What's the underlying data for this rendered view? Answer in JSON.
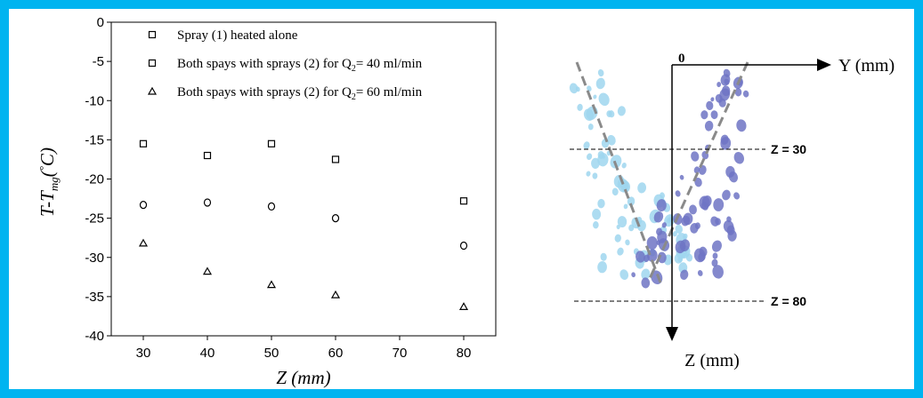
{
  "colors": {
    "frame": "#00b4f0",
    "spray_light": "#9fd6ee",
    "spray_dark": "#6f74c4",
    "spray_axis": "#8a8a8a"
  },
  "chart_data": {
    "type": "scatter",
    "title": "",
    "xlabel": "Z (mm)",
    "ylabel": "T-T_mg(°C)",
    "ylabel_parts": [
      "T-T",
      "mg",
      "(",
      "°",
      "C)"
    ],
    "x_ticks": [
      30,
      40,
      50,
      60,
      70,
      80
    ],
    "y_ticks": [
      0,
      -5,
      -10,
      -15,
      -20,
      -25,
      -30,
      -35,
      -40
    ],
    "xlim": [
      25,
      85
    ],
    "ylim": [
      -40,
      0
    ],
    "grid": false,
    "legend_position": "top",
    "series": [
      {
        "name": "Spray (1) heated alone",
        "marker": "square",
        "x": [
          30,
          40,
          50,
          60,
          80
        ],
        "y": [
          -15.5,
          -17,
          -15.5,
          -17.5,
          -22.8
        ]
      },
      {
        "name": "Both spays with sprays (2) for Q2= 40 ml/min",
        "name_parts": [
          "Both spays with sprays (2) for Q",
          "2",
          "= 40 ml/min"
        ],
        "marker": "square",
        "x": [
          30,
          40,
          50,
          60,
          80
        ],
        "y": [
          -23.3,
          -23,
          -23.5,
          -25,
          -28.5
        ]
      },
      {
        "name": "Both spays with sprays (2) for Q2= 60 ml/min",
        "name_parts": [
          "Both spays with sprays (2) for Q",
          "2",
          "= 60 ml/min"
        ],
        "marker": "triangle",
        "x": [
          30,
          40,
          50,
          60,
          80
        ],
        "y": [
          -28.2,
          -31.8,
          -33.5,
          -34.8,
          -36.3
        ]
      }
    ]
  },
  "diagram": {
    "y_axis_label": "Y (mm)",
    "z_axis_label": "Z (mm)",
    "origin_label": "0",
    "z30_label": "Z = 30",
    "z80_label": "Z = 80"
  }
}
